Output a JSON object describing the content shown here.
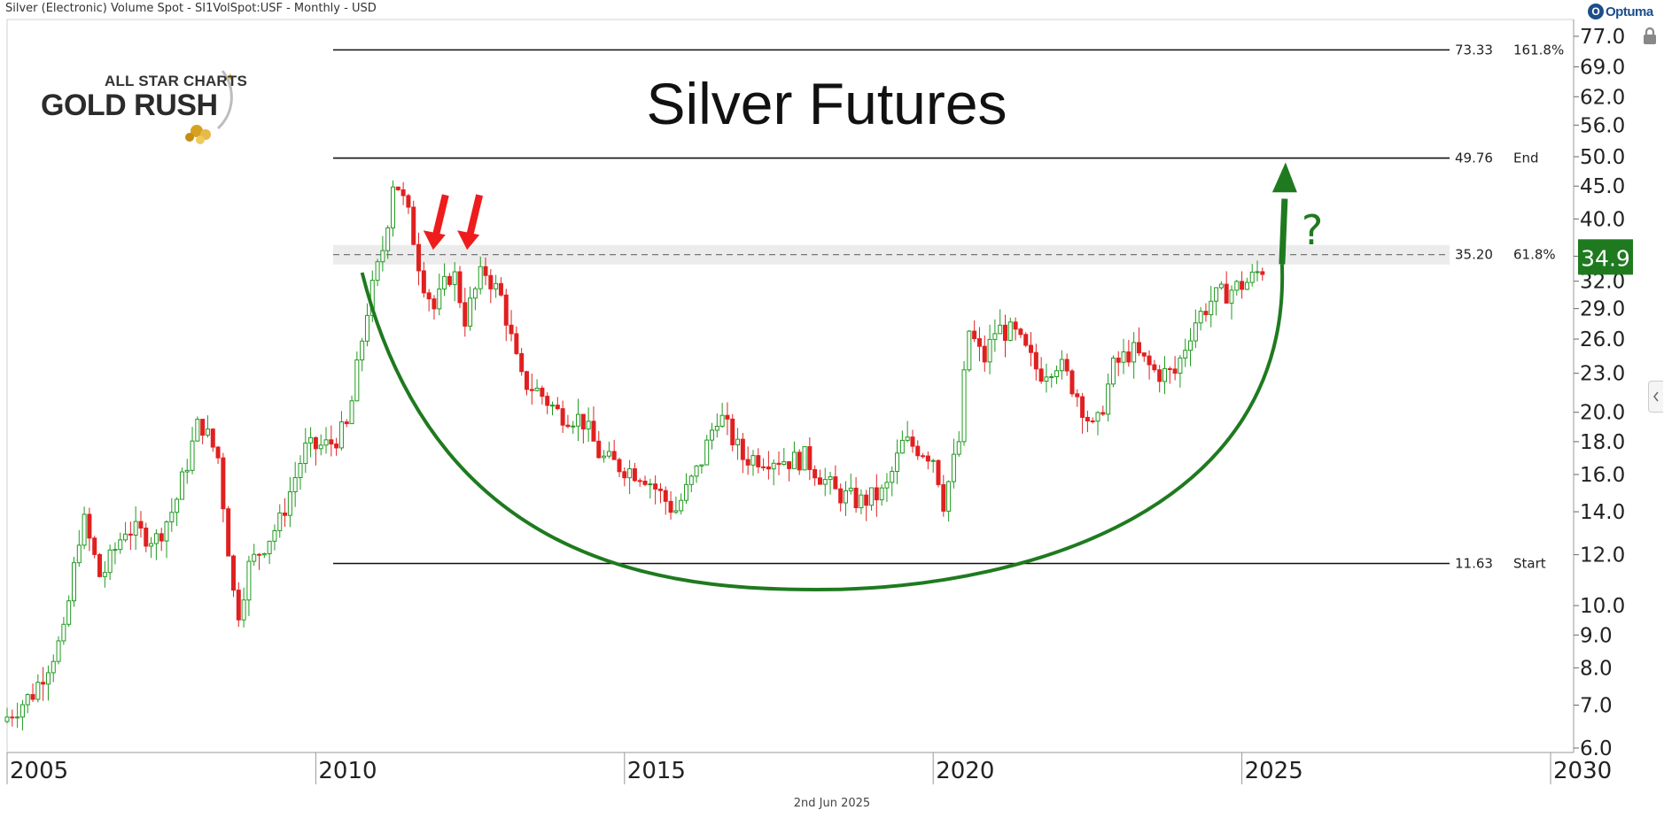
{
  "header": {
    "title": "Silver (Electronic) Volume Spot - SI1VolSpot:USF - Monthly - USD",
    "brand": "Optuma",
    "brand_mark": "O"
  },
  "logo": {
    "line1": "ALL STAR CHARTS",
    "line2": "GOLD RUSH"
  },
  "footer": {
    "date": "2nd Jun 2025"
  },
  "icons": [
    "lock-icon",
    "chevron-left-icon"
  ],
  "colors": {
    "up": "#1f9a1f",
    "down": "#e02020",
    "arc": "#1f7a1f",
    "arrow_red": "#ee1c1c",
    "price_badge": "#1f7a1f",
    "zone": "#dcdcdc"
  },
  "chart_data": {
    "type": "candlestick",
    "title": "Silver Futures",
    "scale": "log",
    "ylim": [
      6.0,
      77.0
    ],
    "y_ticks": [
      6.0,
      7.0,
      8.0,
      9.0,
      10.0,
      12.0,
      14.0,
      16.0,
      18.0,
      20.0,
      23.0,
      26.0,
      29.0,
      32.0,
      35.0,
      40.0,
      45.0,
      50.0,
      56.0,
      62.0,
      69.0,
      77.0
    ],
    "y_tick_labels": [
      "6.0",
      "7.0",
      "8.0",
      "9.0",
      "10.0",
      "12.0",
      "14.0",
      "16.0",
      "18.0",
      "20.0",
      "23.0",
      "26.0",
      "29.0",
      "32.0",
      "35.0",
      "40.0",
      "45.0",
      "50.0",
      "56.0",
      "62.0",
      "69.0",
      "77.0"
    ],
    "xlim": [
      2005,
      2030
    ],
    "x_ticks": [
      2005,
      2010,
      2015,
      2020,
      2025,
      2030
    ],
    "x_tick_labels": [
      "2005",
      "2010",
      "2015",
      "2020",
      "2025",
      "2030"
    ],
    "current_price": 34.9,
    "current_price_label": "34.9",
    "fib_levels": [
      {
        "value": 73.33,
        "value_label": "73.33",
        "label": "161.8%",
        "dashed": false
      },
      {
        "value": 49.76,
        "value_label": "49.76",
        "label": "End",
        "dashed": false
      },
      {
        "value": 35.2,
        "value_label": "35.20",
        "label": "61.8%",
        "dashed": true
      },
      {
        "value": 11.63,
        "value_label": "11.63",
        "label": "Start",
        "dashed": false
      }
    ],
    "annotations": {
      "question": "?"
    },
    "price_path": [
      [
        2005.0,
        6.6
      ],
      [
        2005.5,
        7.3
      ],
      [
        2006.0,
        9.0
      ],
      [
        2006.3,
        13.8
      ],
      [
        2006.6,
        11.0
      ],
      [
        2007.0,
        13.2
      ],
      [
        2007.5,
        12.7
      ],
      [
        2007.8,
        14.3
      ],
      [
        2008.2,
        19.5
      ],
      [
        2008.5,
        17.0
      ],
      [
        2008.8,
        9.5
      ],
      [
        2009.0,
        11.5
      ],
      [
        2009.5,
        13.5
      ],
      [
        2009.9,
        17.5
      ],
      [
        2010.3,
        17.8
      ],
      [
        2010.6,
        19.0
      ],
      [
        2010.9,
        28.5
      ],
      [
        2011.2,
        37.0
      ],
      [
        2011.35,
        47.0
      ],
      [
        2011.6,
        40.0
      ],
      [
        2011.8,
        32.5
      ],
      [
        2012.0,
        29.0
      ],
      [
        2012.3,
        33.5
      ],
      [
        2012.5,
        28.0
      ],
      [
        2012.8,
        33.5
      ],
      [
        2013.1,
        30.0
      ],
      [
        2013.4,
        22.5
      ],
      [
        2013.7,
        21.5
      ],
      [
        2014.0,
        20.0
      ],
      [
        2014.4,
        19.5
      ],
      [
        2014.7,
        17.0
      ],
      [
        2015.0,
        16.5
      ],
      [
        2015.4,
        16.0
      ],
      [
        2015.9,
        14.0
      ],
      [
        2016.3,
        16.5
      ],
      [
        2016.6,
        20.0
      ],
      [
        2017.0,
        17.0
      ],
      [
        2017.5,
        17.0
      ],
      [
        2017.8,
        16.8
      ],
      [
        2018.0,
        17.0
      ],
      [
        2018.5,
        15.0
      ],
      [
        2018.9,
        14.5
      ],
      [
        2019.3,
        15.0
      ],
      [
        2019.6,
        18.0
      ],
      [
        2019.9,
        17.5
      ],
      [
        2020.1,
        17.0
      ],
      [
        2020.25,
        14.5
      ],
      [
        2020.5,
        18.0
      ],
      [
        2020.65,
        27.0
      ],
      [
        2020.9,
        24.0
      ],
      [
        2021.1,
        27.0
      ],
      [
        2021.4,
        26.5
      ],
      [
        2021.8,
        23.0
      ],
      [
        2022.1,
        24.0
      ],
      [
        2022.4,
        21.5
      ],
      [
        2022.7,
        18.5
      ],
      [
        2023.0,
        23.5
      ],
      [
        2023.3,
        25.0
      ],
      [
        2023.7,
        23.0
      ],
      [
        2024.0,
        23.0
      ],
      [
        2024.3,
        27.5
      ],
      [
        2024.6,
        30.0
      ],
      [
        2024.9,
        31.0
      ],
      [
        2025.2,
        32.0
      ],
      [
        2025.4,
        33.5
      ]
    ]
  }
}
